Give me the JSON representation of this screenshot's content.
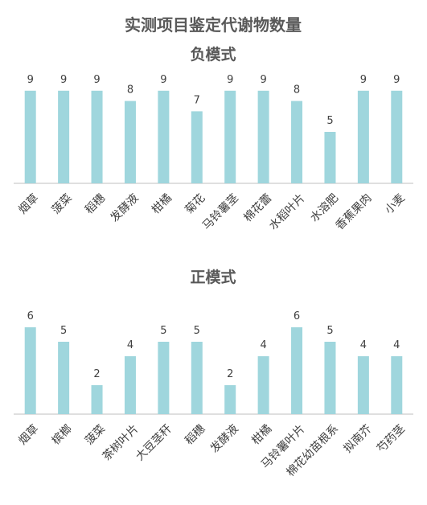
{
  "page_title": "实测项目鉴定代谢物数量",
  "colors": {
    "bar": "#9fd6dd",
    "axis": "#bfbfbf",
    "text": "#404040",
    "title": "#595959"
  },
  "chart_data": [
    {
      "type": "bar",
      "title": "负模式",
      "categories": [
        "烟草",
        "菠菜",
        "稻穗",
        "发酵液",
        "柑橘",
        "菊花",
        "马铃薯茎",
        "棉花蕾",
        "水稻叶片",
        "水溶肥",
        "香蕉果肉",
        "小麦"
      ],
      "values": [
        9,
        9,
        9,
        8,
        9,
        7,
        9,
        9,
        8,
        5,
        9,
        9
      ],
      "ylim": [
        0,
        10
      ],
      "xlabel": "",
      "ylabel": "",
      "grid": false,
      "data_labels": true
    },
    {
      "type": "bar",
      "title": "正模式",
      "categories": [
        "烟草",
        "槟榔",
        "菠菜",
        "茶树叶片",
        "大豆茎秆",
        "稻穗",
        "发酵液",
        "柑橘",
        "马铃薯叶片",
        "棉花幼苗根系",
        "拟南芥",
        "芍药茎"
      ],
      "values": [
        6,
        5,
        2,
        4,
        5,
        5,
        2,
        4,
        6,
        5,
        4,
        4
      ],
      "ylim": [
        0,
        6.5
      ],
      "xlabel": "",
      "ylabel": "",
      "grid": false,
      "data_labels": true
    }
  ]
}
